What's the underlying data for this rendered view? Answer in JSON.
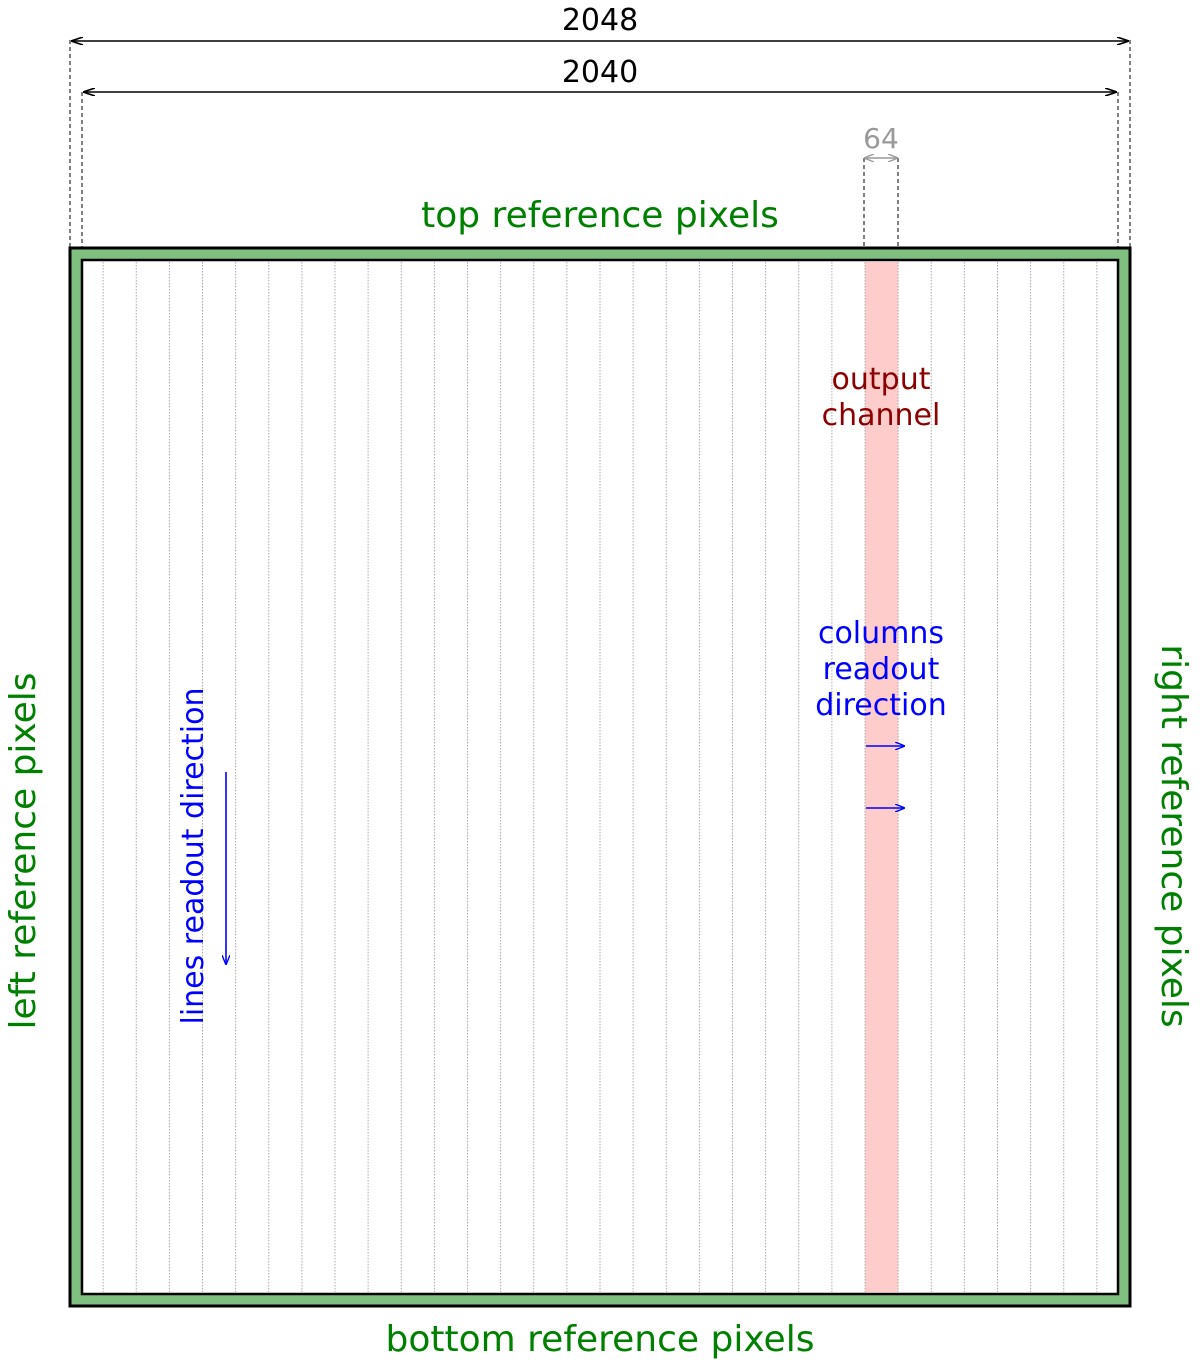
{
  "dimensions": {
    "outer_width_label": "2048",
    "inner_width_label": "2040",
    "channel_width_label": "64"
  },
  "reference_pixels": {
    "top": "top reference pixels",
    "bottom": "bottom reference pixels",
    "left": "left reference pixels",
    "right": "right reference pixels"
  },
  "channel": {
    "label_line1": "output",
    "label_line2": "channel",
    "count": 32,
    "highlighted_index": 24
  },
  "readout": {
    "columns_line1": "columns",
    "columns_line2": "readout",
    "columns_line3": "direction",
    "lines": "lines readout direction"
  },
  "colors": {
    "reference_green": "#7fbf7f",
    "border": "#000000",
    "label_green": "#008000",
    "channel_fill": "#ffcccc",
    "channel_label": "#8b0000",
    "readout_blue": "#0000ff",
    "minor_dimension_gray": "#999999",
    "grid_line": "#aaaaaa"
  }
}
